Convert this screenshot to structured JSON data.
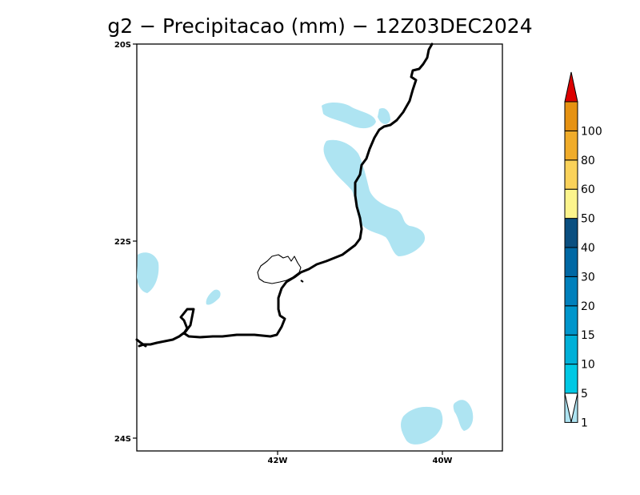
{
  "map": {
    "title": "g2 − Precipitacao (mm) − 12Z03DEC2024",
    "lat_labels": [
      "20S",
      "22S",
      "24S"
    ],
    "lon_labels": [
      "42W",
      "40W"
    ],
    "precip_fill_color": "#aee4f2",
    "coastline_color": "#000000"
  },
  "colorbar": {
    "levels": [
      {
        "label": "1",
        "color": "#aee4f2"
      },
      {
        "label": "5",
        "color": "#00c8e4"
      },
      {
        "label": "10",
        "color": "#00b0d8"
      },
      {
        "label": "15",
        "color": "#0096cc"
      },
      {
        "label": "20",
        "color": "#0080bc"
      },
      {
        "label": "30",
        "color": "#0068a4"
      },
      {
        "label": "40",
        "color": "#0a4f80"
      },
      {
        "label": "50",
        "color": "#fcf48c"
      },
      {
        "label": "60",
        "color": "#fad25a"
      },
      {
        "label": "80",
        "color": "#f0ac2a"
      },
      {
        "label": "100",
        "color": "#e69212"
      }
    ],
    "top_color": "#dc0000",
    "bottom_color": "#ffffff"
  }
}
